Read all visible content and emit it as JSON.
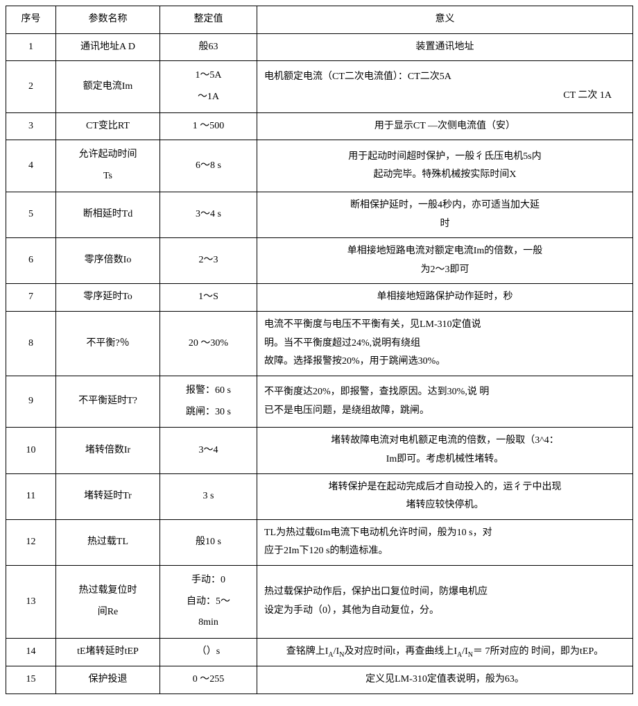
{
  "headers": {
    "col1": "序号",
    "col2": "参数名称",
    "col3": "整定值",
    "col4": "意义"
  },
  "rows": [
    {
      "num": "1",
      "name": "通讯地址A D",
      "value": "般63",
      "meaning": "装置通讯地址"
    },
    {
      "num": "2",
      "name": "额定电流Im",
      "value_l1": "1〜5A",
      "value_l2": "〜1A",
      "meaning_l1": "电机额定电流（CT二次电流值）：CT二次5A",
      "meaning_l2": "CT 二次  1A"
    },
    {
      "num": "3",
      "name": "CT变比RT",
      "value": "1 〜500",
      "meaning": "用于显示CT —次侧电流值（安）"
    },
    {
      "num": "4",
      "name_l1": "允许起动时间",
      "name_l2": "Ts",
      "value": "6〜8 s",
      "meaning_l1": "用于起动时间超时保护，一般彳氐压电机5s内",
      "meaning_l2": "起动完毕。特殊机械按实际时间X"
    },
    {
      "num": "5",
      "name": "断相延时Td",
      "value": "3〜4 s",
      "meaning_l1": "断相保护延时，一般4秒内，亦可适当加大延",
      "meaning_l2": "时"
    },
    {
      "num": "6",
      "name": "零序倍数Io",
      "value": "2〜3",
      "meaning_l1": "单相接地短路电流对额定电流Im的倍数，一般",
      "meaning_l2": "为2〜3即可"
    },
    {
      "num": "7",
      "name": "零序延时To",
      "value": "1〜S",
      "meaning": "单相接地短路保护动作延时，秒"
    },
    {
      "num": "8",
      "name": "不平衡?％",
      "value": "20 〜30%",
      "meaning_l1": "电流不平衡度与电压不平衡有关，见LM-310定值说",
      "meaning_l2": "明。当不平衡度超过24%,说明有绕组",
      "meaning_l3": "故障。选择报警按20%，用于跳闸选30%。"
    },
    {
      "num": "9",
      "name": "不平衡延时T?",
      "value_l1": "报警：60 s",
      "value_l2": "跳闸：30 s",
      "meaning_l1": "不平衡度达20%，即报警，查找原因。达到30%,说  明",
      "meaning_l2": "已不是电压问题，是绕组故障，跳闸。"
    },
    {
      "num": "10",
      "name": "堵转倍数Ir",
      "value": "3〜4",
      "meaning_l1": "堵转故障电流对电机额疋电流的倍数，一般取（3^4：",
      "meaning_l2": "Im即可。考虑机械性堵转。"
    },
    {
      "num": "11",
      "name": "堵转延时Tr",
      "value": "3 s",
      "meaning_l1": "堵转保护是在起动完成后才自动投入的，运彳亍中出现",
      "meaning_l2": "堵转应较快停机。"
    },
    {
      "num": "12",
      "name": "热过载TL",
      "value": "般10 s",
      "meaning_l1": "TL为热过载6Im电流下电动机允许时间，般为10 s，对",
      "meaning_l2": "应于2Im下120 s的制造标准。"
    },
    {
      "num": "13",
      "name_l1": "热过载复位时",
      "name_l2": "间Re",
      "value_l1": "手动：0",
      "value_l2": "自动：5〜",
      "value_l3": "8min",
      "meaning_l1": "热过载保护动作后，保护出口复位时间，防爆电机应",
      "meaning_l2": "设定为手动（0），其他为自动复位，分。"
    },
    {
      "num": "14",
      "name": "tE堵转延时tEP",
      "value": "（）s",
      "meaning_pre": "查铭牌上I",
      "meaning_sub1": "A",
      "meaning_mid1": "/I",
      "meaning_sub2": "N",
      "meaning_mid2": "及对应时间t，再查曲线上I",
      "meaning_sub3": "A",
      "meaning_mid3": "/I",
      "meaning_sub4": "N",
      "meaning_after": "＝ 7所对应的  时间，即为tEP。"
    },
    {
      "num": "15",
      "name": "保护投退",
      "value": "0 〜255",
      "meaning": "定义见LM-310定值表说明，般为63。"
    }
  ]
}
